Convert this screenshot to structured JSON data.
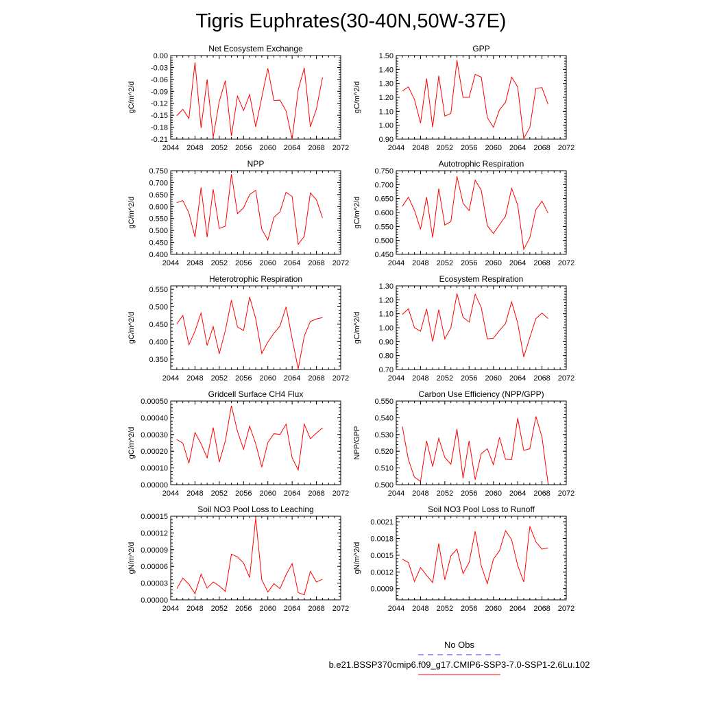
{
  "figure_title": "Tigris Euphrates(30-40N,50W-37E)",
  "legend": [
    {
      "label": "No Obs",
      "color": "#3333ff",
      "dash": true
    },
    {
      "label": "b.e21.BSSP370cmip6.f09_g17.CMIP6-SSP3-7.0-SSP1-2.6Lu.102",
      "color": "#ff0000",
      "dash": false
    }
  ],
  "line_color": "#ff0000",
  "chart_data": [
    {
      "type": "line",
      "title": "Net Ecosystem Exchange",
      "ylabel": "gC/m^2/d",
      "xlim": [
        2044,
        2072
      ],
      "xticks": [
        2044,
        2048,
        2052,
        2056,
        2060,
        2064,
        2068,
        2072
      ],
      "ylim": [
        -0.21,
        0.0
      ],
      "yticks": [
        "0.00",
        "-0.03",
        "-0.06",
        "-0.09",
        "-0.12",
        "-0.15",
        "-0.18",
        "-0.21"
      ],
      "series": [
        {
          "x": [
            2045,
            2046,
            2047,
            2048,
            2049,
            2050,
            2051,
            2052,
            2053,
            2054,
            2055,
            2056,
            2057,
            2058,
            2059,
            2060,
            2061,
            2062,
            2063,
            2064,
            2065,
            2066,
            2067,
            2068,
            2069
          ],
          "y": [
            -0.151,
            -0.135,
            -0.158,
            -0.017,
            -0.182,
            -0.06,
            -0.205,
            -0.115,
            -0.063,
            -0.202,
            -0.102,
            -0.138,
            -0.098,
            -0.179,
            -0.105,
            -0.032,
            -0.113,
            -0.112,
            -0.139,
            -0.21,
            -0.086,
            -0.031,
            -0.179,
            -0.134,
            -0.055
          ]
        }
      ]
    },
    {
      "type": "line",
      "title": "GPP",
      "ylabel": "gC/m^2/d",
      "xlim": [
        2044,
        2072
      ],
      "xticks": [
        2044,
        2048,
        2052,
        2056,
        2060,
        2064,
        2068,
        2072
      ],
      "ylim": [
        0.9,
        1.5
      ],
      "yticks": [
        "1.50",
        "1.40",
        "1.30",
        "1.20",
        "1.10",
        "1.00",
        "0.90"
      ],
      "series": [
        {
          "x": [
            2045,
            2046,
            2047,
            2048,
            2049,
            2050,
            2051,
            2052,
            2053,
            2054,
            2055,
            2056,
            2057,
            2058,
            2059,
            2060,
            2061,
            2062,
            2063,
            2064,
            2065,
            2066,
            2067,
            2068,
            2069
          ],
          "y": [
            1.245,
            1.275,
            1.185,
            1.015,
            1.335,
            0.985,
            1.355,
            1.065,
            1.085,
            1.465,
            1.2,
            1.2,
            1.365,
            1.345,
            1.055,
            0.985,
            1.11,
            1.165,
            1.345,
            1.275,
            0.905,
            0.985,
            1.265,
            1.27,
            1.15
          ]
        }
      ]
    },
    {
      "type": "line",
      "title": "NPP",
      "ylabel": "gC/m^2/d",
      "xlim": [
        2044,
        2072
      ],
      "xticks": [
        2044,
        2048,
        2052,
        2056,
        2060,
        2064,
        2068,
        2072
      ],
      "ylim": [
        0.4,
        0.75
      ],
      "yticks": [
        "0.750",
        "0.700",
        "0.650",
        "0.600",
        "0.550",
        "0.500",
        "0.450",
        "0.400"
      ],
      "series": [
        {
          "x": [
            2045,
            2046,
            2047,
            2048,
            2049,
            2050,
            2051,
            2052,
            2053,
            2054,
            2055,
            2056,
            2057,
            2058,
            2059,
            2060,
            2061,
            2062,
            2063,
            2064,
            2065,
            2066,
            2067,
            2068,
            2069
          ],
          "y": [
            0.616,
            0.625,
            0.573,
            0.472,
            0.68,
            0.472,
            0.672,
            0.508,
            0.518,
            0.735,
            0.57,
            0.595,
            0.65,
            0.668,
            0.505,
            0.46,
            0.555,
            0.578,
            0.66,
            0.642,
            0.442,
            0.475,
            0.657,
            0.628,
            0.553
          ]
        }
      ]
    },
    {
      "type": "line",
      "title": "Autotrophic Respiration",
      "ylabel": "gC/m^2/d",
      "xlim": [
        2044,
        2072
      ],
      "xticks": [
        2044,
        2048,
        2052,
        2056,
        2060,
        2064,
        2068,
        2072
      ],
      "ylim": [
        0.45,
        0.75
      ],
      "yticks": [
        "0.750",
        "0.700",
        "0.650",
        "0.600",
        "0.550",
        "0.500",
        "0.450"
      ],
      "series": [
        {
          "x": [
            2045,
            2046,
            2047,
            2048,
            2049,
            2050,
            2051,
            2052,
            2053,
            2054,
            2055,
            2056,
            2057,
            2058,
            2059,
            2060,
            2061,
            2062,
            2063,
            2064,
            2065,
            2066,
            2067,
            2068,
            2069
          ],
          "y": [
            0.622,
            0.655,
            0.608,
            0.54,
            0.655,
            0.51,
            0.686,
            0.555,
            0.568,
            0.73,
            0.633,
            0.607,
            0.716,
            0.68,
            0.553,
            0.525,
            0.556,
            0.587,
            0.687,
            0.627,
            0.468,
            0.51,
            0.61,
            0.641,
            0.598
          ]
        }
      ]
    },
    {
      "type": "line",
      "title": "Heterotrophic Respiration",
      "ylabel": "gC/m^2/d",
      "xlim": [
        2044,
        2072
      ],
      "xticks": [
        2044,
        2048,
        2052,
        2056,
        2060,
        2064,
        2068,
        2072
      ],
      "ylim": [
        0.32,
        0.56
      ],
      "yticks": [
        "0.550",
        "0.500",
        "0.450",
        "0.400",
        "0.350"
      ],
      "series": [
        {
          "x": [
            2045,
            2046,
            2047,
            2048,
            2049,
            2050,
            2051,
            2052,
            2053,
            2054,
            2055,
            2056,
            2057,
            2058,
            2059,
            2060,
            2061,
            2062,
            2063,
            2064,
            2065,
            2066,
            2067,
            2068,
            2069
          ],
          "y": [
            0.451,
            0.475,
            0.391,
            0.43,
            0.482,
            0.389,
            0.443,
            0.365,
            0.432,
            0.519,
            0.442,
            0.432,
            0.528,
            0.466,
            0.366,
            0.399,
            0.424,
            0.445,
            0.5,
            0.408,
            0.322,
            0.416,
            0.458,
            0.465,
            0.469
          ]
        }
      ]
    },
    {
      "type": "line",
      "title": "Ecosystem Respiration",
      "ylabel": "gC/m^2/d",
      "xlim": [
        2044,
        2072
      ],
      "xticks": [
        2044,
        2048,
        2052,
        2056,
        2060,
        2064,
        2068,
        2072
      ],
      "ylim": [
        0.7,
        1.3
      ],
      "yticks": [
        "1.30",
        "1.20",
        "1.10",
        "1.00",
        "0.90",
        "0.80",
        "0.70"
      ],
      "series": [
        {
          "x": [
            2045,
            2046,
            2047,
            2048,
            2049,
            2050,
            2051,
            2052,
            2053,
            2054,
            2055,
            2056,
            2057,
            2058,
            2059,
            2060,
            2061,
            2062,
            2063,
            2064,
            2065,
            2066,
            2067,
            2068,
            2069
          ],
          "y": [
            1.095,
            1.135,
            1.0,
            0.975,
            1.135,
            0.9,
            1.13,
            0.92,
            1.0,
            1.245,
            1.075,
            1.04,
            1.24,
            1.145,
            0.92,
            0.925,
            0.98,
            1.03,
            1.185,
            1.035,
            0.79,
            0.93,
            1.065,
            1.105,
            1.065
          ]
        }
      ]
    },
    {
      "type": "line",
      "title": "Gridcell Surface CH4 Flux",
      "ylabel": "gC/m^2/d",
      "xlim": [
        2044,
        2072
      ],
      "xticks": [
        2044,
        2048,
        2052,
        2056,
        2060,
        2064,
        2068,
        2072
      ],
      "ylim": [
        0.0,
        0.0005
      ],
      "yticks": [
        "0.00050",
        "0.00040",
        "0.00030",
        "0.00020",
        "0.00010",
        "0.00000"
      ],
      "series": [
        {
          "x": [
            2045,
            2046,
            2047,
            2048,
            2049,
            2050,
            2051,
            2052,
            2053,
            2054,
            2055,
            2056,
            2057,
            2058,
            2059,
            2060,
            2061,
            2062,
            2063,
            2064,
            2065,
            2066,
            2067,
            2068,
            2069
          ],
          "y": [
            0.00027,
            0.000248,
            0.000128,
            0.000312,
            0.000245,
            0.00016,
            0.000342,
            0.000135,
            0.000262,
            0.000472,
            0.000318,
            0.000212,
            0.00035,
            0.000245,
            0.000105,
            0.000252,
            0.000305,
            0.0003,
            0.000362,
            0.00016,
            8.8e-05,
            0.000362,
            0.000275,
            0.000308,
            0.00034
          ]
        }
      ]
    },
    {
      "type": "line",
      "title": "Carbon Use Efficiency (NPP/GPP)",
      "ylabel": "NPP/GPP",
      "xlim": [
        2044,
        2072
      ],
      "xticks": [
        2044,
        2048,
        2052,
        2056,
        2060,
        2064,
        2068,
        2072
      ],
      "ylim": [
        0.5,
        0.55
      ],
      "yticks": [
        "0.550",
        "0.540",
        "0.530",
        "0.520",
        "0.510",
        "0.500"
      ],
      "series": [
        {
          "x": [
            2045,
            2046,
            2047,
            2048,
            2049,
            2050,
            2051,
            2052,
            2053,
            2054,
            2055,
            2056,
            2057,
            2058,
            2059,
            2060,
            2061,
            2062,
            2063,
            2064,
            2065,
            2066,
            2067,
            2068,
            2069
          ],
          "y": [
            0.5348,
            0.515,
            0.5045,
            0.502,
            0.5262,
            0.5108,
            0.5278,
            0.5163,
            0.5122,
            0.5333,
            0.5038,
            0.5262,
            0.503,
            0.5185,
            0.5215,
            0.512,
            0.5283,
            0.5152,
            0.515,
            0.5398,
            0.5205,
            0.5215,
            0.5408,
            0.5285,
            0.5008
          ]
        }
      ]
    },
    {
      "type": "line",
      "title": "Soil NO3 Pool Loss to Leaching",
      "ylabel": "gN/m^2/d",
      "xlim": [
        2044,
        2072
      ],
      "xticks": [
        2044,
        2048,
        2052,
        2056,
        2060,
        2064,
        2068,
        2072
      ],
      "ylim": [
        0.0,
        0.00015
      ],
      "yticks": [
        "0.00015",
        "0.00012",
        "0.00009",
        "0.00006",
        "0.00003",
        "0.00000"
      ],
      "series": [
        {
          "x": [
            2045,
            2046,
            2047,
            2048,
            2049,
            2050,
            2051,
            2052,
            2053,
            2054,
            2055,
            2056,
            2057,
            2058,
            2059,
            2060,
            2061,
            2062,
            2063,
            2064,
            2065,
            2066,
            2067,
            2068,
            2069
          ],
          "y": [
            2e-05,
            3.9e-05,
            2.8e-05,
            1.1e-05,
            4.6e-05,
            2.1e-05,
            3.2e-05,
            2.5e-05,
            1.5e-05,
            8.2e-05,
            7.7e-05,
            6.6e-05,
            4e-05,
            0.000147,
            3.6e-05,
            1.4e-05,
            2.9e-05,
            2e-05,
            4.5e-05,
            6.5e-05,
            1.3e-05,
            9e-06,
            5.1e-05,
            3.2e-05,
            3.7e-05
          ]
        }
      ]
    },
    {
      "type": "line",
      "title": "Soil NO3 Pool Loss to Runoff",
      "ylabel": "gN/m^2/d",
      "xlim": [
        2044,
        2072
      ],
      "xticks": [
        2044,
        2048,
        2052,
        2056,
        2060,
        2064,
        2068,
        2072
      ],
      "ylim": [
        0.0007,
        0.0022
      ],
      "yticks": [
        "0.0021",
        "0.0018",
        "0.0015",
        "0.0012",
        "0.0009"
      ],
      "series": [
        {
          "x": [
            2045,
            2046,
            2047,
            2048,
            2049,
            2050,
            2051,
            2052,
            2053,
            2054,
            2055,
            2056,
            2057,
            2058,
            2059,
            2060,
            2061,
            2062,
            2063,
            2064,
            2065,
            2066,
            2067,
            2068,
            2069
          ],
          "y": [
            0.00143,
            0.00137,
            0.00103,
            0.00128,
            0.00114,
            0.00101,
            0.00171,
            0.00106,
            0.00149,
            0.00161,
            0.00117,
            0.00137,
            0.00193,
            0.00131,
            0.00099,
            0.00143,
            0.00158,
            0.00194,
            0.00178,
            0.00132,
            0.00102,
            0.00202,
            0.00174,
            0.00161,
            0.00163
          ]
        }
      ]
    }
  ]
}
